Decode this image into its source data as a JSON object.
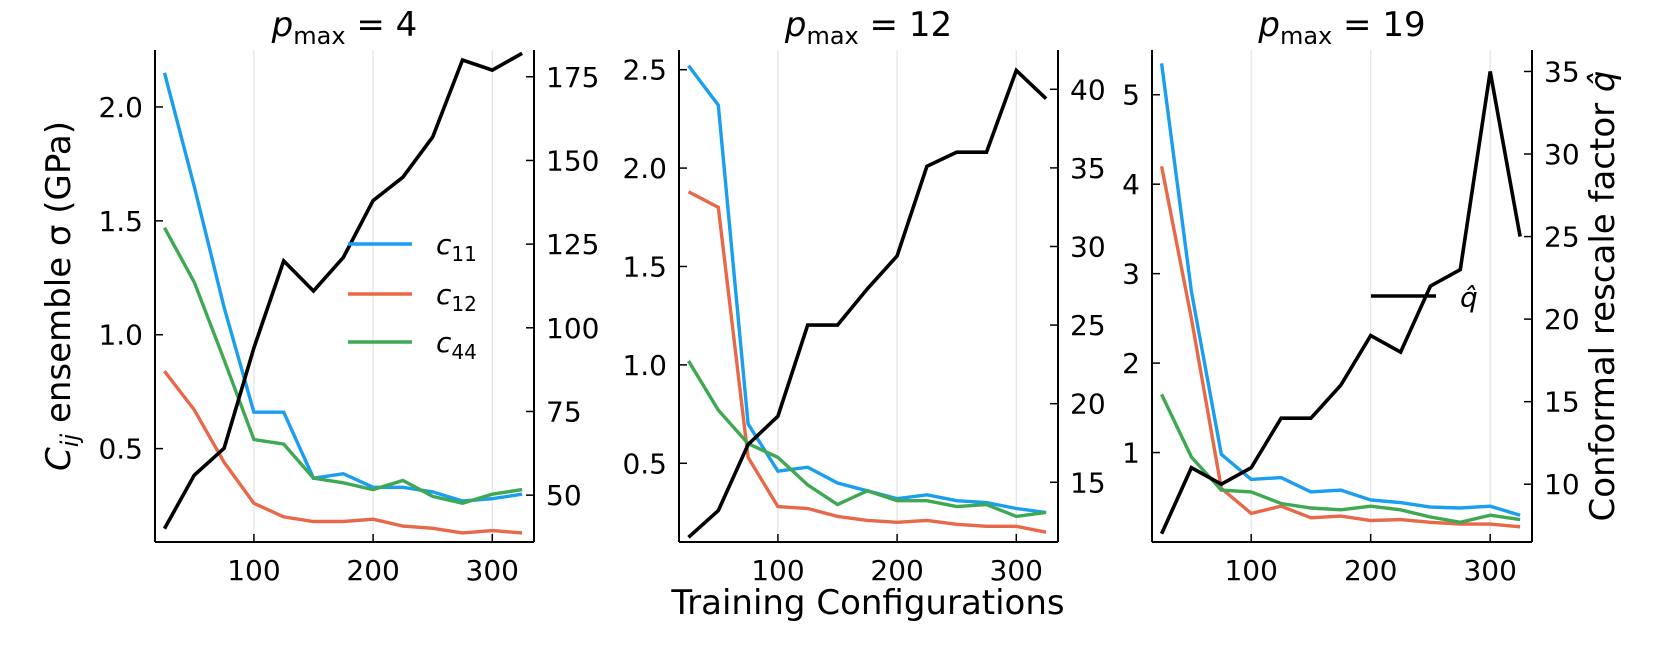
{
  "figure": {
    "xlabel": "Training Configurations",
    "ylabel_left": "C_ij ensemble σ (GPa)",
    "ylabel_left_symbol": "C",
    "ylabel_left_subscript": "ij",
    "ylabel_left_rest": " ensemble σ  (GPa)",
    "ylabel_right_text": "Conformal rescale factor ",
    "ylabel_right_symbol": "q̂"
  },
  "legend": {
    "entries": [
      {
        "key": "c11",
        "base": "c",
        "sub": "11",
        "color": "#1a9ef0"
      },
      {
        "key": "c12",
        "base": "c",
        "sub": "12",
        "color": "#e8694a"
      },
      {
        "key": "c44",
        "base": "c",
        "sub": "44",
        "color": "#3ea852"
      }
    ],
    "qhat": {
      "label": "q̂",
      "color": "#000000"
    }
  },
  "chart_data": [
    {
      "type": "line",
      "title": "p_max = 4",
      "title_base": "p",
      "title_sub": "max",
      "title_rest": " = 4",
      "x": [
        25,
        50,
        75,
        100,
        125,
        150,
        175,
        200,
        225,
        250,
        275,
        300,
        325
      ],
      "xlim": [
        17,
        335
      ],
      "xticks": [
        100,
        200,
        300
      ],
      "ylim_left": [
        0.09,
        2.25
      ],
      "yticks_left": [
        0.5,
        1.0,
        1.5,
        2.0
      ],
      "ytick_labels_left": [
        "0.5",
        "1.0",
        "1.5",
        "2.0"
      ],
      "ylim_right": [
        36,
        183
      ],
      "yticks_right": [
        50,
        75,
        100,
        125,
        150,
        175
      ],
      "ytick_labels_right": [
        "50",
        "75",
        "100",
        "125",
        "150",
        "175"
      ],
      "series": [
        {
          "name": "c11",
          "axis": "left",
          "color": "#1a9ef0",
          "values": [
            2.15,
            1.65,
            1.12,
            0.66,
            0.66,
            0.37,
            0.39,
            0.33,
            0.33,
            0.31,
            0.27,
            0.28,
            0.3
          ]
        },
        {
          "name": "c12",
          "axis": "left",
          "color": "#e8694a",
          "values": [
            0.84,
            0.67,
            0.44,
            0.26,
            0.2,
            0.18,
            0.18,
            0.19,
            0.16,
            0.15,
            0.13,
            0.14,
            0.13
          ]
        },
        {
          "name": "c44",
          "axis": "left",
          "color": "#3ea852",
          "values": [
            1.47,
            1.23,
            0.89,
            0.54,
            0.52,
            0.37,
            0.35,
            0.32,
            0.36,
            0.29,
            0.26,
            0.3,
            0.32
          ]
        },
        {
          "name": "q̂",
          "axis": "right",
          "color": "#000000",
          "values": [
            40,
            56,
            64,
            94,
            120,
            111,
            121,
            138,
            145,
            157,
            180,
            177,
            182
          ]
        }
      ]
    },
    {
      "type": "line",
      "title": "p_max = 12",
      "title_base": "p",
      "title_sub": "max",
      "title_rest": " = 12",
      "x": [
        25,
        50,
        75,
        100,
        125,
        150,
        175,
        200,
        225,
        250,
        275,
        300,
        325
      ],
      "xlim": [
        17,
        335
      ],
      "xticks": [
        100,
        200,
        300
      ],
      "ylim_left": [
        0.1,
        2.6
      ],
      "yticks_left": [
        0.5,
        1.0,
        1.5,
        2.0,
        2.5
      ],
      "ytick_labels_left": [
        "0.5",
        "1.0",
        "1.5",
        "2.0",
        "2.5"
      ],
      "ylim_right": [
        11.2,
        42.5
      ],
      "yticks_right": [
        15,
        20,
        25,
        30,
        35,
        40
      ],
      "ytick_labels_right": [
        "15",
        "20",
        "25",
        "30",
        "35",
        "40"
      ],
      "series": [
        {
          "name": "c11",
          "axis": "left",
          "color": "#1a9ef0",
          "values": [
            2.52,
            2.32,
            0.7,
            0.46,
            0.48,
            0.4,
            0.36,
            0.32,
            0.34,
            0.31,
            0.3,
            0.27,
            0.25
          ]
        },
        {
          "name": "c12",
          "axis": "left",
          "color": "#e8694a",
          "values": [
            1.88,
            1.8,
            0.53,
            0.28,
            0.27,
            0.23,
            0.21,
            0.2,
            0.21,
            0.19,
            0.18,
            0.18,
            0.15
          ]
        },
        {
          "name": "c44",
          "axis": "left",
          "color": "#3ea852",
          "values": [
            1.02,
            0.77,
            0.6,
            0.53,
            0.39,
            0.29,
            0.36,
            0.31,
            0.31,
            0.28,
            0.29,
            0.23,
            0.25
          ]
        },
        {
          "name": "q̂",
          "axis": "right",
          "color": "#000000",
          "values": [
            11.5,
            13.2,
            17.4,
            19.2,
            25.0,
            25.0,
            27.3,
            29.4,
            35.1,
            36.0,
            36.0,
            41.2,
            39.4
          ]
        }
      ]
    },
    {
      "type": "line",
      "title": "p_max = 19",
      "title_base": "p",
      "title_sub": "max",
      "title_rest": " = 19",
      "x": [
        25,
        50,
        75,
        100,
        125,
        150,
        175,
        200,
        225,
        250,
        275,
        300,
        325
      ],
      "xlim": [
        17,
        335
      ],
      "xticks": [
        100,
        200,
        300
      ],
      "ylim_left": [
        0.0,
        5.5
      ],
      "yticks_left": [
        1,
        2,
        3,
        4,
        5
      ],
      "ytick_labels_left": [
        "1",
        "2",
        "3",
        "4",
        "5"
      ],
      "ylim_right": [
        6.5,
        36.3
      ],
      "yticks_right": [
        10,
        15,
        20,
        25,
        30,
        35
      ],
      "ytick_labels_right": [
        "10",
        "15",
        "20",
        "25",
        "30",
        "35"
      ],
      "series": [
        {
          "name": "c11",
          "axis": "left",
          "color": "#1a9ef0",
          "values": [
            5.35,
            2.8,
            0.98,
            0.7,
            0.72,
            0.56,
            0.58,
            0.47,
            0.44,
            0.39,
            0.38,
            0.4,
            0.3
          ]
        },
        {
          "name": "c12",
          "axis": "left",
          "color": "#e8694a",
          "values": [
            4.2,
            2.5,
            0.6,
            0.32,
            0.4,
            0.27,
            0.29,
            0.24,
            0.25,
            0.22,
            0.2,
            0.2,
            0.17
          ]
        },
        {
          "name": "c44",
          "axis": "left",
          "color": "#3ea852",
          "values": [
            1.65,
            0.95,
            0.58,
            0.56,
            0.43,
            0.38,
            0.36,
            0.4,
            0.36,
            0.28,
            0.22,
            0.3,
            0.25
          ]
        },
        {
          "name": "q̂",
          "axis": "right",
          "color": "#000000",
          "values": [
            7.0,
            11.0,
            10.0,
            11.0,
            14.0,
            14.0,
            16.0,
            19.0,
            18.0,
            22.0,
            23.0,
            35.0,
            25.0
          ]
        }
      ]
    }
  ]
}
